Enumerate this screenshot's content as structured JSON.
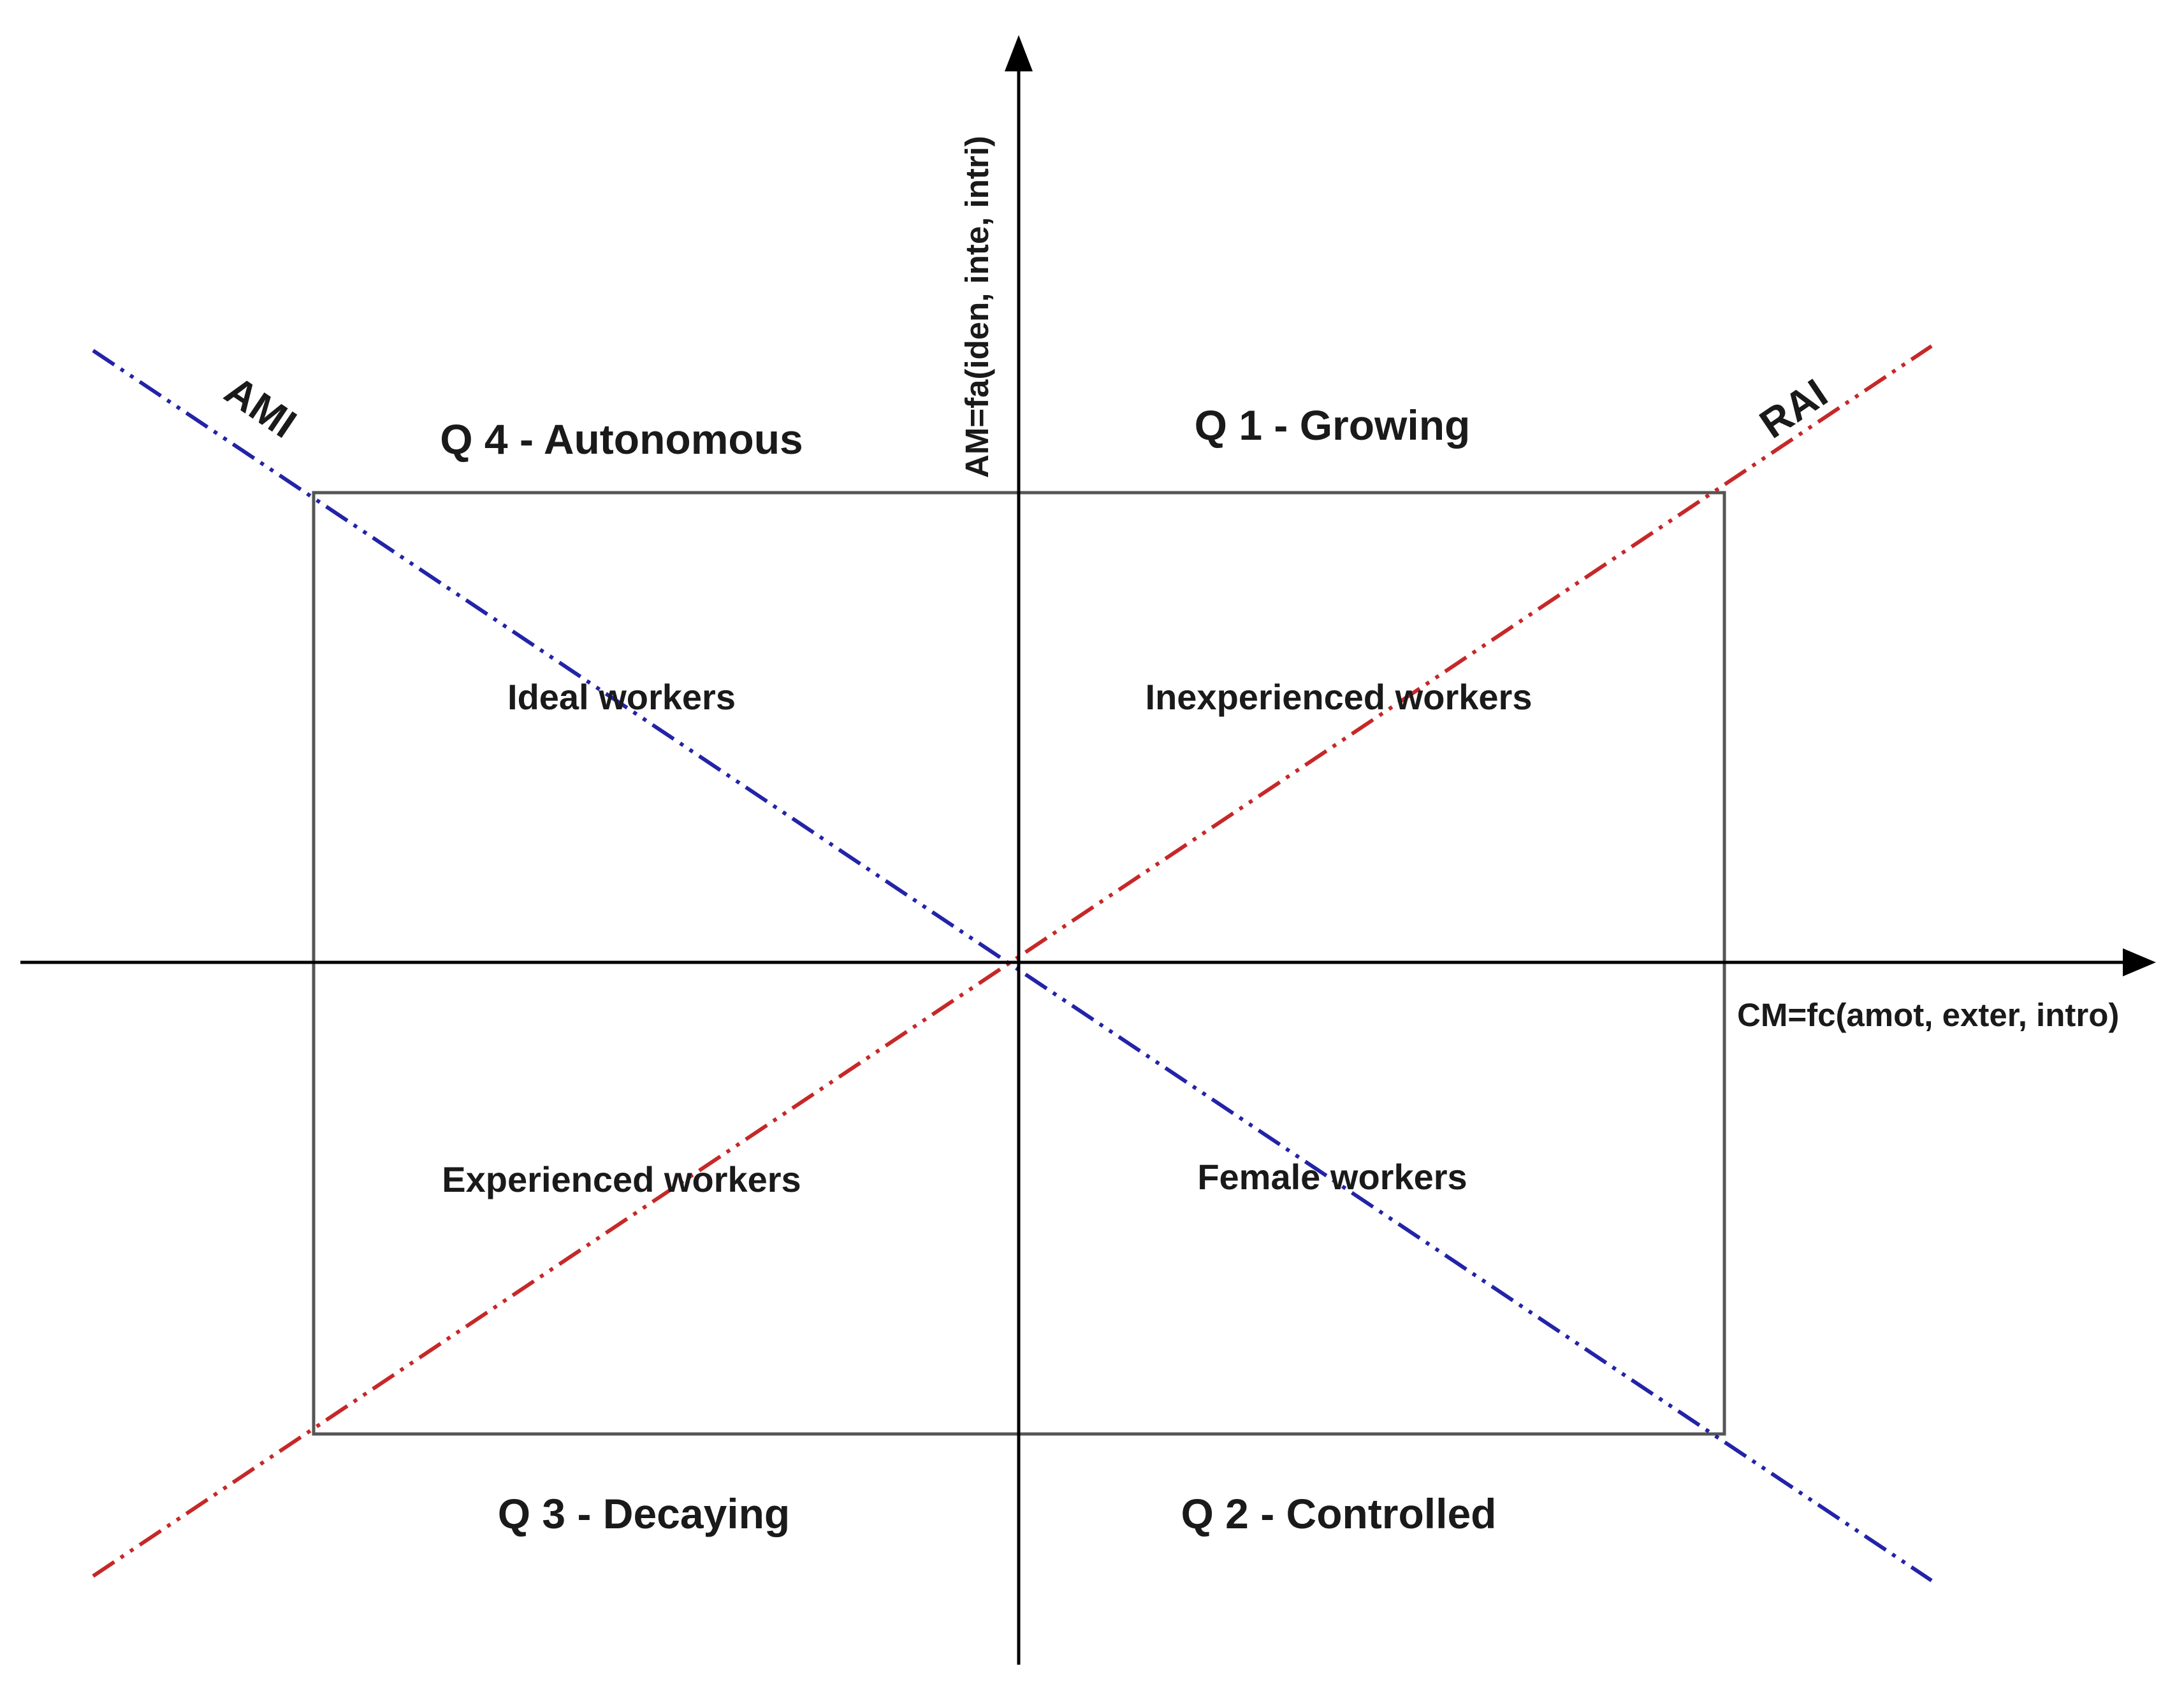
{
  "diagram": {
    "axes": {
      "x_label": "CM=fc(amot, exter, intro)",
      "y_label": "AM=fa(iden, inte, intri)"
    },
    "lines": {
      "ami": {
        "label": "AMI",
        "color": "#2323a8"
      },
      "rai": {
        "label": "RAI",
        "color": "#c62828"
      }
    },
    "quadrants": {
      "q1": {
        "title": "Q 1 - Growing",
        "group": "Inexperienced workers"
      },
      "q2": {
        "title": "Q 2 - Controlled",
        "group": "Female workers"
      },
      "q3": {
        "title": "Q 3 - Decaying",
        "group": "Experienced workers"
      },
      "q4": {
        "title": "Q 4 - Autonomous",
        "group": "Ideal workers"
      }
    }
  }
}
